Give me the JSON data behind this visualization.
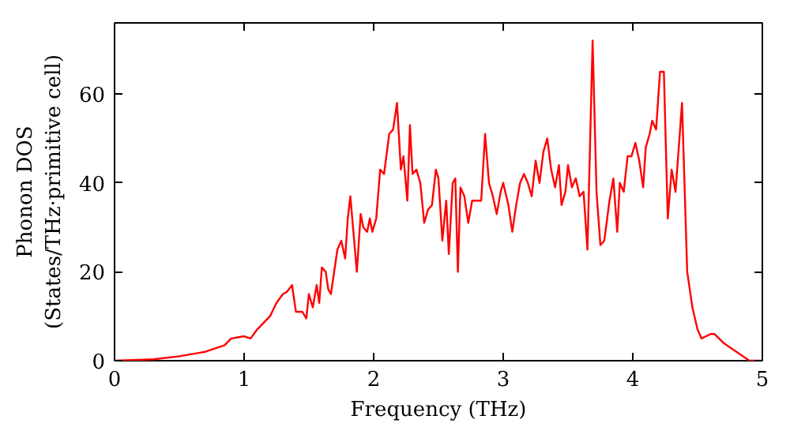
{
  "chart_data": {
    "type": "line",
    "xlabel": "Frequency (THz)",
    "ylabel": "Phonon DOS\n(States/THz·primitive cell)",
    "x": [
      0,
      0.3,
      0.5,
      0.7,
      0.85,
      0.9,
      1.0,
      1.05,
      1.1,
      1.2,
      1.25,
      1.3,
      1.33,
      1.37,
      1.4,
      1.45,
      1.48,
      1.5,
      1.53,
      1.56,
      1.58,
      1.6,
      1.63,
      1.65,
      1.67,
      1.72,
      1.75,
      1.78,
      1.8,
      1.82,
      1.87,
      1.9,
      1.92,
      1.95,
      1.97,
      1.99,
      2.02,
      2.05,
      2.08,
      2.12,
      2.15,
      2.18,
      2.21,
      2.23,
      2.26,
      2.28,
      2.3,
      2.33,
      2.36,
      2.39,
      2.42,
      2.45,
      2.48,
      2.5,
      2.53,
      2.56,
      2.58,
      2.61,
      2.63,
      2.65,
      2.67,
      2.7,
      2.73,
      2.76,
      2.8,
      2.83,
      2.86,
      2.89,
      2.92,
      2.95,
      2.98,
      3.0,
      3.04,
      3.07,
      3.1,
      3.13,
      3.16,
      3.19,
      3.22,
      3.25,
      3.28,
      3.31,
      3.34,
      3.37,
      3.4,
      3.43,
      3.45,
      3.48,
      3.5,
      3.53,
      3.56,
      3.59,
      3.62,
      3.65,
      3.69,
      3.72,
      3.75,
      3.78,
      3.82,
      3.85,
      3.88,
      3.9,
      3.93,
      3.96,
      3.99,
      4.02,
      4.05,
      4.08,
      4.1,
      4.13,
      4.15,
      4.18,
      4.21,
      4.24,
      4.27,
      4.3,
      4.33,
      4.38,
      4.42,
      4.46,
      4.5,
      4.53,
      4.6,
      4.63,
      4.7,
      4.8,
      4.9,
      5.0
    ],
    "series": [
      {
        "color": "#ff0000",
        "values": [
          0,
          0.3,
          1,
          2,
          3.5,
          5,
          5.5,
          5,
          7,
          10,
          13,
          15,
          15.5,
          17,
          11,
          11,
          9.5,
          15,
          12,
          17,
          13,
          21,
          20,
          16,
          15,
          25,
          27,
          23,
          32,
          37,
          20,
          33,
          30,
          29,
          32,
          29,
          32,
          43,
          42,
          51,
          52,
          58,
          43,
          46,
          36,
          53,
          42,
          43,
          40,
          31,
          34,
          35,
          43,
          41,
          27,
          36,
          24,
          40,
          41,
          20,
          39,
          37,
          31,
          36,
          36,
          36,
          51,
          40,
          37,
          33,
          38,
          40,
          35,
          29,
          35,
          40,
          42,
          40,
          37,
          45,
          40,
          47,
          50,
          43,
          39,
          44,
          35,
          38,
          44,
          39,
          41,
          37,
          38,
          25,
          72,
          38,
          26,
          27,
          36,
          41,
          29,
          40,
          38,
          46,
          46,
          49,
          45,
          39,
          48,
          51,
          54,
          52,
          65,
          65,
          32,
          43,
          38,
          58,
          20,
          12,
          7,
          5,
          6,
          6,
          4,
          2,
          0,
          0
        ]
      }
    ],
    "xlim": [
      0,
      5
    ],
    "ylim": [
      0,
      76
    ],
    "xticks": [
      0,
      1,
      2,
      3,
      4,
      5
    ],
    "yticks": [
      0,
      20,
      40,
      60
    ],
    "grid": false
  }
}
